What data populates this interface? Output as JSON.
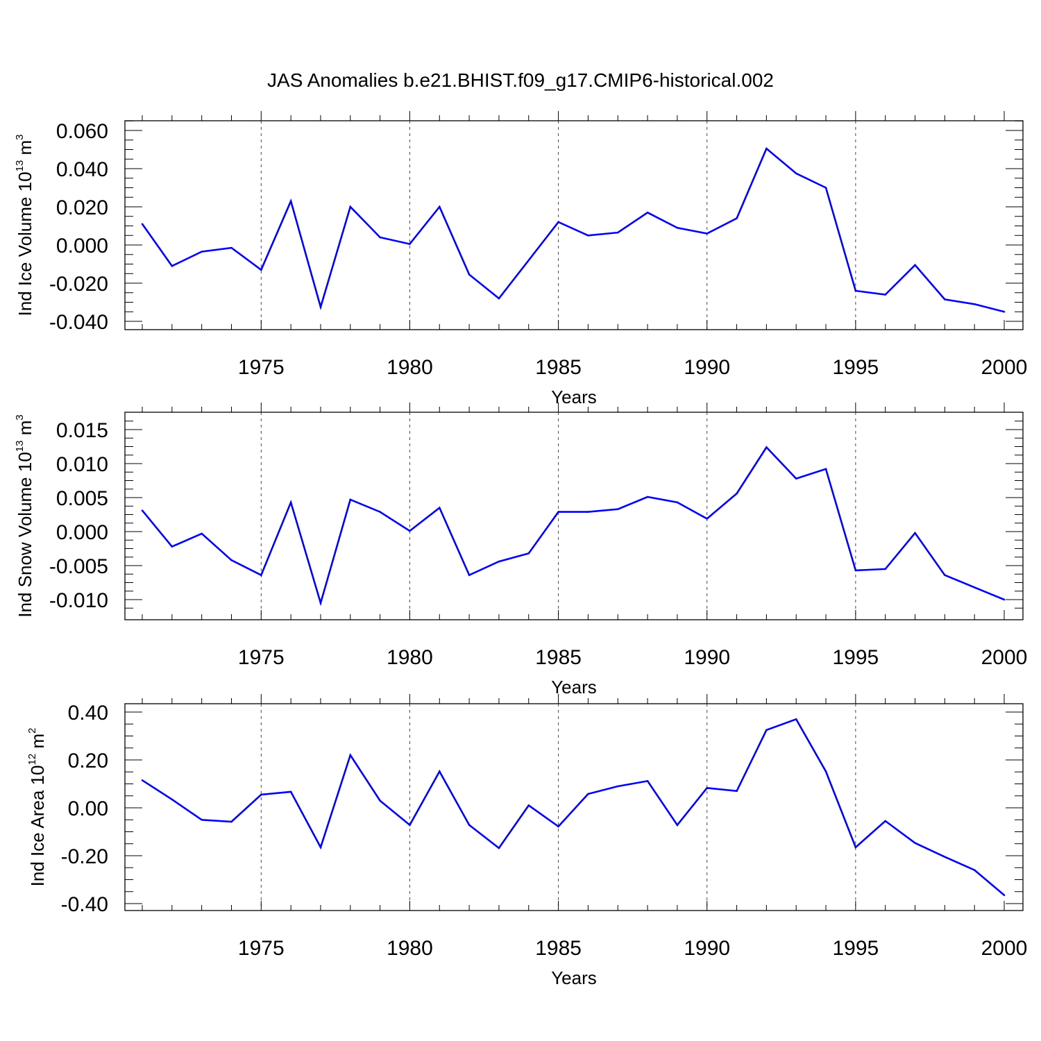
{
  "title": "JAS Anomalies b.e21.BHIST.f09_g17.CMIP6-historical.002",
  "line_color": "#0000ff",
  "chart_data": [
    {
      "type": "line",
      "xlabel": "Years",
      "ylabel": {
        "main": "Ind Ice Volume 10",
        "exp": "13",
        "unit": " m",
        "unit_exp": "3"
      },
      "xlim": [
        1971,
        2000
      ],
      "ylim": [
        -0.04,
        0.065
      ],
      "xticks": [
        "1975",
        "1980",
        "1985",
        "1990",
        "1995",
        "2000"
      ],
      "yticks": [
        "0.060",
        "0.040",
        "0.020",
        "0.000",
        "-0.020",
        "-0.040"
      ],
      "x": [
        1971,
        1972,
        1973,
        1974,
        1975,
        1976,
        1977,
        1978,
        1979,
        1980,
        1981,
        1982,
        1983,
        1984,
        1985,
        1986,
        1987,
        1988,
        1989,
        1990,
        1991,
        1992,
        1993,
        1994,
        1995,
        1996,
        1997,
        1998,
        1999,
        2000
      ],
      "values": [
        0.011,
        -0.011,
        -0.0035,
        -0.0015,
        -0.013,
        0.023,
        -0.0325,
        0.02,
        0.004,
        0.0005,
        0.02,
        -0.0155,
        -0.028,
        -0.008,
        0.012,
        0.005,
        0.0065,
        0.017,
        0.009,
        0.006,
        0.014,
        0.0505,
        0.0375,
        0.03,
        -0.024,
        -0.026,
        -0.0105,
        -0.0285,
        -0.031,
        -0.035
      ]
    },
    {
      "type": "line",
      "xlabel": "Years",
      "ylabel": {
        "main": "Ind Snow Volume 10",
        "exp": "13",
        "unit": " m",
        "unit_exp": "3"
      },
      "xlim": [
        1971,
        2000
      ],
      "ylim": [
        -0.012,
        0.0165
      ],
      "xticks": [
        "1975",
        "1980",
        "1985",
        "1990",
        "1995",
        "2000"
      ],
      "yticks": [
        "0.015",
        "0.010",
        "0.005",
        "0.000",
        "-0.005",
        "-0.010"
      ],
      "x": [
        1971,
        1972,
        1973,
        1974,
        1975,
        1976,
        1977,
        1978,
        1979,
        1980,
        1981,
        1982,
        1983,
        1984,
        1985,
        1986,
        1987,
        1988,
        1989,
        1990,
        1991,
        1992,
        1993,
        1994,
        1995,
        1996,
        1997,
        1998,
        1999,
        2000
      ],
      "values": [
        0.0031,
        -0.0022,
        -0.0003,
        -0.0042,
        -0.0064,
        0.0043,
        -0.0105,
        0.0047,
        0.0029,
        0.0001,
        0.0035,
        -0.0064,
        -0.0044,
        -0.0032,
        0.0029,
        0.0029,
        0.0033,
        0.0051,
        0.0043,
        0.0019,
        0.0056,
        0.0124,
        0.0078,
        0.0092,
        -0.0057,
        -0.0055,
        -0.0002,
        -0.0064,
        -0.0082,
        -0.01
      ]
    },
    {
      "type": "line",
      "xlabel": "Years",
      "ylabel": {
        "main": "Ind Ice Area 10",
        "exp": "12",
        "unit": " m",
        "unit_exp": "2"
      },
      "xlim": [
        1971,
        2000
      ],
      "ylim": [
        -0.4,
        0.4
      ],
      "xticks": [
        "1975",
        "1980",
        "1985",
        "1990",
        "1995",
        "2000"
      ],
      "yticks": [
        "0.40",
        "0.20",
        "0.00",
        "-0.20",
        "-0.40"
      ],
      "x": [
        1971,
        1972,
        1973,
        1974,
        1975,
        1976,
        1977,
        1978,
        1979,
        1980,
        1981,
        1982,
        1983,
        1984,
        1985,
        1986,
        1987,
        1988,
        1989,
        1990,
        1991,
        1992,
        1993,
        1994,
        1995,
        1996,
        1997,
        1998,
        1999,
        2000
      ],
      "values": [
        0.115,
        0.035,
        -0.05,
        -0.058,
        0.055,
        0.067,
        -0.165,
        0.22,
        0.03,
        -0.072,
        0.152,
        -0.072,
        -0.168,
        0.01,
        -0.078,
        0.058,
        0.09,
        0.112,
        -0.072,
        0.083,
        0.07,
        0.325,
        0.37,
        0.152,
        -0.165,
        -0.055,
        -0.147,
        -0.205,
        -0.26,
        -0.365
      ]
    }
  ]
}
